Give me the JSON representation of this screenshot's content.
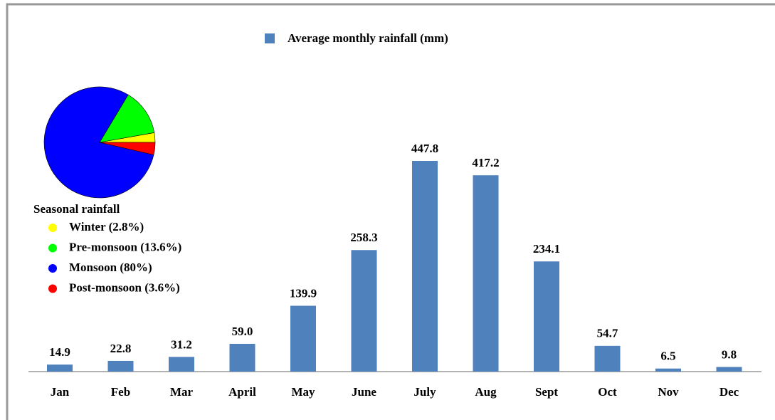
{
  "chart_data": [
    {
      "type": "bar",
      "categories": [
        "Jan",
        "Feb",
        "Mar",
        "April",
        "May",
        "June",
        "July",
        "Aug",
        "Sept",
        "Oct",
        "Nov",
        "Dec"
      ],
      "series": [
        {
          "name": "Average monthly rainfall (mm)",
          "color": "#4f81bd",
          "values": [
            14.9,
            22.8,
            31.2,
            59,
            139.9,
            258.3,
            447.8,
            417.2,
            234.1,
            54.7,
            6.5,
            9.8
          ],
          "value_labels": [
            "14.9",
            "22.8",
            "31.2",
            "59.0",
            "139.9",
            "258.3",
            "447.8",
            "417.2",
            "234.1",
            "54.7",
            "6.5",
            "9.8"
          ]
        }
      ]
    },
    {
      "type": "pie",
      "legend_title": "Seasonal rainfall",
      "categories": [
        "Winter (2.8%)",
        "Pre-monsoon (13.6%)",
        "Monsoon (80%)",
        "Post-monsoon (3.6%)"
      ],
      "values": [
        2.8,
        13.6,
        80,
        3.6
      ],
      "colors": [
        "#ffff00",
        "#00ff00",
        "#0000ff",
        "#ff0000"
      ]
    }
  ]
}
